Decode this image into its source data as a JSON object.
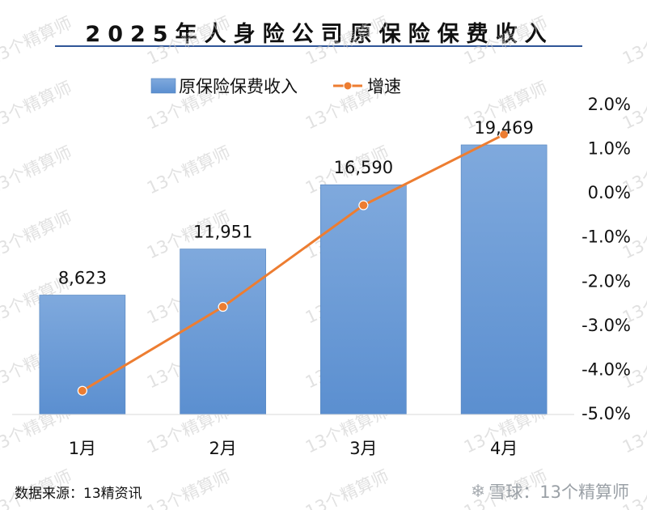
{
  "title": "2025年人身险公司原保险保费收入",
  "source": "数据来源：13精资讯",
  "watermark": {
    "text": "13个精算师",
    "logo_text": "雪球：13个精算师",
    "logo_icon": "snowball-logo-icon"
  },
  "colors": {
    "bar": "#5b8fd0",
    "bar_top": "#7fa9dd",
    "line": "#ed7d31",
    "title_rule": "#2f5597"
  },
  "chart_data": {
    "type": "bar",
    "categories": [
      "1月",
      "2月",
      "3月",
      "4月"
    ],
    "series": [
      {
        "name": "原保险保费收入",
        "type": "bar",
        "axis": "left",
        "values": [
          8623,
          11951,
          16590,
          19469
        ],
        "labels": [
          "8,623",
          "11,951",
          "16,590",
          "19,469"
        ]
      },
      {
        "name": "增速",
        "type": "line",
        "axis": "right",
        "values": [
          -4.5,
          -2.6,
          -0.3,
          1.3
        ]
      }
    ],
    "y_left_range": [
      0,
      23500
    ],
    "y_right": {
      "range": [
        -5.0,
        2.0
      ],
      "ticks": [
        2.0,
        1.0,
        0.0,
        -1.0,
        -2.0,
        -3.0,
        -4.0,
        -5.0
      ],
      "tick_labels": [
        "2.0%",
        "1.0%",
        "0.0%",
        "-1.0%",
        "-2.0%",
        "-3.0%",
        "-4.0%",
        "-5.0%"
      ]
    },
    "legend_position": "top",
    "grid": false
  }
}
